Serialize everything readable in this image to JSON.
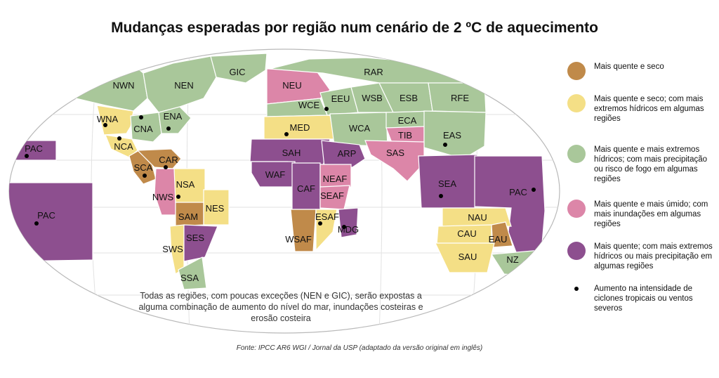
{
  "title": "Mudanças esperadas por região num cenário de 2 ºC de aquecimento",
  "colors": {
    "hot_dry": "#c08a4a",
    "hot_dry_extremes": "#f4df86",
    "hot_extremes_fire": "#a9c79a",
    "hot_humid_floods": "#dc86a8",
    "hot_precip_extremes": "#8d4f8f",
    "ocean_frame": "#ffffff",
    "frame_stroke": "#b9b9b9"
  },
  "legend": [
    {
      "color_key": "hot_dry",
      "text": "Mais quente e seco"
    },
    {
      "color_key": "hot_dry_extremes",
      "text": "Mais quente e seco; com mais extremos hídricos em algumas regiões"
    },
    {
      "color_key": "hot_extremes_fire",
      "text": "Mais quente e mais extremos hídricos; com mais precipitação ou risco de fogo em algumas regiões"
    },
    {
      "color_key": "hot_humid_floods",
      "text": "Mais quente e mais úmido; com mais inundações em algumas regiões"
    },
    {
      "color_key": "hot_precip_extremes",
      "text": "Mais quente; com mais extremos hídricos ou mais precipitação em algumas regiões"
    },
    {
      "color_key": "dot",
      "text": "Aumento na intensidade de ciclones tropicais ou ventos severos"
    }
  ],
  "regions": [
    {
      "code": "NWN",
      "cat": "hot_extremes_fire",
      "cyclone": false
    },
    {
      "code": "NEN",
      "cat": "hot_extremes_fire",
      "cyclone": false
    },
    {
      "code": "GIC",
      "cat": "hot_extremes_fire",
      "cyclone": false
    },
    {
      "code": "WNA",
      "cat": "hot_dry_extremes",
      "cyclone": true
    },
    {
      "code": "CNA",
      "cat": "hot_extremes_fire",
      "cyclone": true
    },
    {
      "code": "ENA",
      "cat": "hot_extremes_fire",
      "cyclone": true
    },
    {
      "code": "NCA",
      "cat": "hot_dry_extremes",
      "cyclone": true
    },
    {
      "code": "SCA",
      "cat": "hot_dry",
      "cyclone": true
    },
    {
      "code": "CAR",
      "cat": "hot_dry",
      "cyclone": true
    },
    {
      "code": "NWS",
      "cat": "hot_humid_floods",
      "cyclone": false
    },
    {
      "code": "NSA",
      "cat": "hot_dry_extremes",
      "cyclone": true
    },
    {
      "code": "SAM",
      "cat": "hot_dry",
      "cyclone": false
    },
    {
      "code": "NES",
      "cat": "hot_dry_extremes",
      "cyclone": false
    },
    {
      "code": "SWS",
      "cat": "hot_dry_extremes",
      "cyclone": false
    },
    {
      "code": "SES",
      "cat": "hot_precip_extremes",
      "cyclone": false
    },
    {
      "code": "SSA",
      "cat": "hot_extremes_fire",
      "cyclone": false
    },
    {
      "code": "NEU",
      "cat": "hot_humid_floods",
      "cyclone": false
    },
    {
      "code": "WCE",
      "cat": "hot_extremes_fire",
      "cyclone": true
    },
    {
      "code": "EEU",
      "cat": "hot_extremes_fire",
      "cyclone": false
    },
    {
      "code": "MED",
      "cat": "hot_dry_extremes",
      "cyclone": true
    },
    {
      "code": "RAR",
      "cat": "hot_extremes_fire",
      "cyclone": false
    },
    {
      "code": "WSB",
      "cat": "hot_extremes_fire",
      "cyclone": false
    },
    {
      "code": "ESB",
      "cat": "hot_extremes_fire",
      "cyclone": false
    },
    {
      "code": "RFE",
      "cat": "hot_extremes_fire",
      "cyclone": false
    },
    {
      "code": "WCA",
      "cat": "hot_extremes_fire",
      "cyclone": false
    },
    {
      "code": "ECA",
      "cat": "hot_extremes_fire",
      "cyclone": false
    },
    {
      "code": "TIB",
      "cat": "hot_humid_floods",
      "cyclone": false
    },
    {
      "code": "EAS",
      "cat": "hot_extremes_fire",
      "cyclone": true
    },
    {
      "code": "SAS",
      "cat": "hot_humid_floods",
      "cyclone": false
    },
    {
      "code": "SAH",
      "cat": "hot_precip_extremes",
      "cyclone": false
    },
    {
      "code": "ARP",
      "cat": "hot_precip_extremes",
      "cyclone": false
    },
    {
      "code": "WAF",
      "cat": "hot_precip_extremes",
      "cyclone": false
    },
    {
      "code": "CAF",
      "cat": "hot_precip_extremes",
      "cyclone": false
    },
    {
      "code": "NEAF",
      "cat": "hot_humid_floods",
      "cyclone": false
    },
    {
      "code": "SEAF",
      "cat": "hot_humid_floods",
      "cyclone": false
    },
    {
      "code": "WSAF",
      "cat": "hot_dry",
      "cyclone": false
    },
    {
      "code": "ESAF",
      "cat": "hot_dry_extremes",
      "cyclone": true
    },
    {
      "code": "MDG",
      "cat": "hot_precip_extremes",
      "cyclone": true
    },
    {
      "code": "SEA",
      "cat": "hot_precip_extremes",
      "cyclone": true
    },
    {
      "code": "PAC",
      "cat": "hot_precip_extremes",
      "cyclone": true
    },
    {
      "code": "NAU",
      "cat": "hot_dry_extremes",
      "cyclone": false
    },
    {
      "code": "CAU",
      "cat": "hot_dry_extremes",
      "cyclone": false
    },
    {
      "code": "EAU",
      "cat": "hot_dry",
      "cyclone": false
    },
    {
      "code": "SAU",
      "cat": "hot_dry_extremes",
      "cyclone": false
    },
    {
      "code": "NZ",
      "cat": "hot_extremes_fire",
      "cyclone": false
    }
  ],
  "note": "Todas as regiões, com poucas exceções (NEN e GIC), serão expostas a alguma combinação de aumento do nível do mar, inundações costeiras e erosão costeira",
  "source": "Fonte: IPCC AR6 WGI / Jornal da USP (adaptado da versão original em inglês)"
}
